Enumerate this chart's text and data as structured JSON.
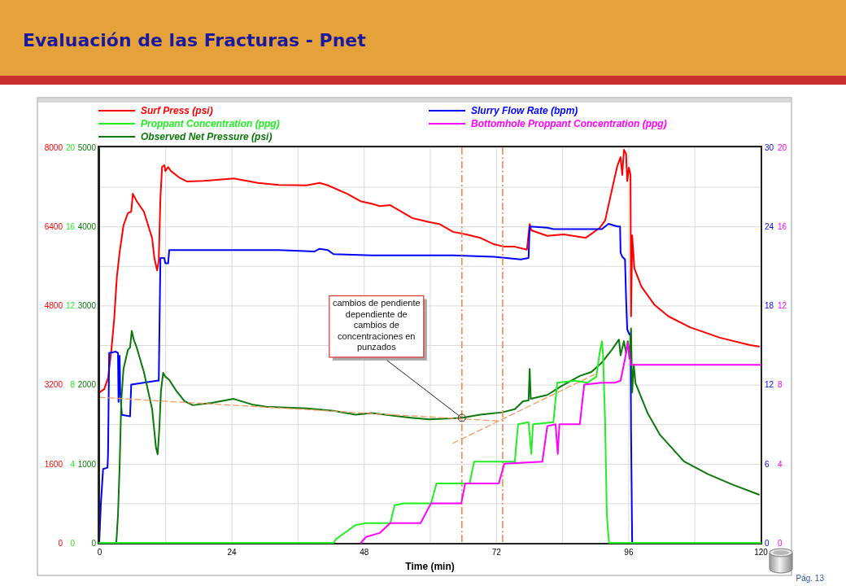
{
  "chart_data": [
    {
      "type": "line",
      "title": "Evaluación de las Fracturas - Pnet",
      "xlabel": "Time (min)",
      "xlim": [
        0,
        120
      ],
      "xticks": [
        0,
        {
          "value": 12,
          "label": null
        },
        24,
        {
          "value": 36,
          "label": null
        },
        48,
        {
          "value": 60,
          "label": null
        },
        72,
        {
          "value": 84,
          "label": null
        },
        96,
        {
          "value": 108,
          "label": null
        },
        120
      ],
      "ylim": [
        0,
        5000
      ],
      "yticks": [
        0,
        {
          "value": 500,
          "label": null
        },
        1000,
        {
          "value": 1500,
          "label": null
        },
        2000,
        {
          "value": 2500,
          "label": null
        },
        3000,
        {
          "value": 3500,
          "label": null
        },
        4000,
        {
          "value": 4500,
          "label": null
        },
        5000
      ],
      "y2lim": [
        0,
        30
      ],
      "y2ticks": [
        0,
        6,
        12,
        18,
        24,
        30
      ],
      "y3lim": [
        0,
        8000
      ],
      "y3ticks": [
        0,
        1600,
        3200,
        4800,
        6400,
        8000
      ],
      "grid": true,
      "legend": "top",
      "line_style": "solid",
      "series": [
        {
          "name": "Surf Press (psi)",
          "color": "#ff0000",
          "axis": "y3",
          "x": [
            0,
            0.9,
            1.6,
            2.2,
            2.7,
            3.2,
            3.7,
            4.4,
            5.2,
            5.8,
            6.1,
            6.8,
            8.1,
            9.6,
            10.0,
            10.5,
            10.8,
            11.1,
            11.4,
            11.8,
            12.0,
            12.5,
            13.0,
            14.5,
            15.9,
            18.9,
            24.4,
            28.8,
            32.6,
            37.6,
            40.0,
            41.5,
            45.0,
            47.4,
            49.4,
            50.9,
            52.8,
            56.8,
            59.8,
            61.7,
            64.2,
            66.6,
            69.1,
            71.6,
            73.5,
            75.4,
            77.6,
            78.1,
            78.4,
            81.3,
            84.3,
            88.3,
            90.8,
            91.8,
            93.0,
            94.0,
            94.6,
            94.9,
            95.2,
            95.6,
            95.8,
            96.1,
            96.4,
            96.5,
            96.7,
            97.1,
            98.4,
            100.7,
            103.3,
            107.2,
            112.6,
            118.1,
            119.7
          ],
          "values": [
            3040,
            3110,
            3330,
            3900,
            4510,
            5380,
            5880,
            6420,
            6670,
            6700,
            7060,
            6910,
            6700,
            6160,
            5760,
            5510,
            5710,
            6980,
            7600,
            7640,
            7520,
            7600,
            7520,
            7390,
            7310,
            7320,
            7370,
            7280,
            7240,
            7230,
            7280,
            7230,
            7060,
            6910,
            6860,
            6810,
            6830,
            6570,
            6490,
            6450,
            6290,
            6240,
            6170,
            6040,
            5990,
            5990,
            5930,
            6450,
            6320,
            6210,
            6240,
            6170,
            6370,
            6520,
            7130,
            7620,
            7800,
            7440,
            7950,
            7870,
            7320,
            7590,
            7440,
            4580,
            6220,
            5550,
            5180,
            4820,
            4580,
            4360,
            4150,
            4000,
            3970
          ]
        },
        {
          "name": "Slurry Flow Rate (bpm)",
          "color": "#0000ff",
          "axis": "y2",
          "x": [
            0,
            0.15,
            0.3,
            0.7,
            1.5,
            1.6,
            1.8,
            3.0,
            3.4,
            3.5,
            3.7,
            3.8,
            4.1,
            5.6,
            5.8,
            10.5,
            10.8,
            11.1,
            11.8,
            12.0,
            12.5,
            12.7,
            17.9,
            32.6,
            39.1,
            40.0,
            41.5,
            42.5,
            49.4,
            64.2,
            71.6,
            76.5,
            77.9,
            78.1,
            81.3,
            82.4,
            91.2,
            92.4,
            94.0,
            94.5,
            94.6,
            94.9,
            95.4,
            95.6,
            95.8,
            96.2,
            96.4,
            96.5,
            96.7
          ],
          "values": [
            0,
            1.5,
            3.0,
            5.6,
            5.7,
            6.8,
            14.4,
            14.5,
            14.4,
            10.7,
            14.2,
            11.5,
            9.7,
            9.6,
            12.0,
            12.3,
            12.3,
            21.6,
            21.6,
            21.2,
            21.2,
            22.2,
            22.2,
            22.2,
            22.1,
            22.3,
            22.2,
            21.9,
            21.8,
            21.8,
            21.7,
            21.5,
            21.6,
            24.0,
            23.9,
            23.8,
            23.8,
            24.2,
            24.0,
            24.0,
            22.0,
            21.7,
            21.5,
            18.5,
            16.2,
            15.8,
            15.9,
            8.5,
            0
          ]
        },
        {
          "name": "Observed Net Pressure (psi)",
          "color": "#0a780a",
          "x": [
            3.1,
            3.4,
            3.7,
            4.0,
            4.4,
            5.2,
            5.6,
            5.9,
            6.3,
            6.8,
            8.1,
            9.6,
            10.3,
            10.6,
            10.9,
            11.2,
            11.6,
            12.0,
            12.7,
            14.0,
            15.5,
            17.0,
            20.4,
            24.4,
            27.7,
            30.3,
            37.6,
            42.5,
            46.5,
            49.4,
            56.8,
            59.8,
            65.7,
            69.1,
            73.1,
            75.4,
            76.9,
            77.9,
            78.1,
            78.3,
            81.3,
            83.8,
            87.2,
            89.3,
            91.2,
            93.0,
            94.3,
            94.6,
            95.2,
            95.6,
            95.9,
            96.2,
            96.5,
            96.7,
            97.0,
            97.3,
            99.5,
            101.7,
            106.1,
            110.4,
            114.8,
            119.7
          ],
          "values": [
            0,
            350,
            970,
            1790,
            2200,
            2440,
            2470,
            2680,
            2560,
            2470,
            2160,
            1690,
            1200,
            1120,
            1440,
            1920,
            2150,
            2100,
            2060,
            1920,
            1790,
            1740,
            1770,
            1820,
            1750,
            1720,
            1700,
            1670,
            1620,
            1640,
            1580,
            1560,
            1580,
            1620,
            1650,
            1690,
            1790,
            1800,
            2200,
            1820,
            1870,
            1980,
            2110,
            2160,
            2280,
            2440,
            2570,
            2370,
            2550,
            2400,
            2550,
            2330,
            2710,
            1900,
            2250,
            2020,
            1640,
            1370,
            1030,
            870,
            740,
            610
          ]
        },
        {
          "color": "#f49a60",
          "line_style": "dashed",
          "x": [
            0,
            72.5
          ],
          "values": [
            1840,
            1540
          ]
        },
        {
          "color": "#f49a60",
          "line_style": "dashed",
          "x": [
            64.2,
            90.2
          ],
          "values": [
            1260,
            2140
          ]
        }
      ],
      "ref_lines": [
        {
          "axis": "x",
          "value": 65.8,
          "color": "#f08a50",
          "line_style": "dashed"
        },
        {
          "axis": "x",
          "value": 73.2,
          "color": "#f08a50",
          "line_style": "dashed"
        }
      ],
      "annotations": [
        {
          "text": "cambios de pendiente dependiente de cambios de concentraciones en punzados",
          "x": 65.8,
          "y": 1580
        },
        "Pág. 13"
      ]
    },
    {
      "type": "line",
      "xlim": [
        0,
        120
      ],
      "ylim": [
        0,
        20
      ],
      "yticks": [
        0,
        4,
        8,
        12,
        16,
        20
      ],
      "y2lim": [
        0,
        20
      ],
      "y2ticks": [
        0,
        4,
        8,
        12,
        16,
        20
      ],
      "tick_labels": "y",
      "legend": "top",
      "line_style": "solid",
      "series": [
        {
          "name": "Proppant Concentration (ppg)",
          "color": "#22ee22",
          "x": [
            0,
            42.5,
            43.0,
            44.0,
            46.5,
            48.4,
            52.8,
            53.6,
            55.3,
            60.2,
            61.2,
            67.2,
            68.0,
            75.4,
            76.0,
            77.9,
            78.4,
            78.7,
            82.4,
            83.1,
            86.3,
            88.6,
            90.2,
            90.8,
            91.2,
            91.4,
            91.8,
            92.1,
            92.5,
            120
          ],
          "values": [
            0,
            0,
            0.2,
            0.4,
            0.9,
            1.0,
            1.0,
            1.9,
            2.0,
            2.0,
            3.0,
            3.0,
            4.1,
            4.1,
            6.0,
            6.1,
            4.5,
            6.0,
            6.1,
            8.1,
            8.2,
            8.1,
            8.4,
            9.6,
            10.2,
            9.6,
            6.0,
            1.4,
            0,
            0
          ]
        },
        {
          "name": "Bottomhole Proppant Concentration (ppg)",
          "color": "#ff00ff",
          "axis": "y2",
          "x": [
            47.5,
            48.4,
            50.9,
            52.8,
            58.3,
            60.2,
            65.7,
            66.4,
            72.5,
            73.5,
            80.4,
            81.3,
            82.8,
            83.2,
            83.5,
            87.2,
            88.0,
            91.2,
            93.6,
            94.6,
            95.4,
            95.9,
            96.5,
            97.1,
            120
          ],
          "values": [
            0,
            0.3,
            0.5,
            1.0,
            1.0,
            2.0,
            2.0,
            3.0,
            3.0,
            4.0,
            4.1,
            5.9,
            6.0,
            4.5,
            6.0,
            6.0,
            8.0,
            8.1,
            8.1,
            8.2,
            9.3,
            10.1,
            9.0,
            9.0,
            9.0
          ]
        }
      ]
    }
  ]
}
